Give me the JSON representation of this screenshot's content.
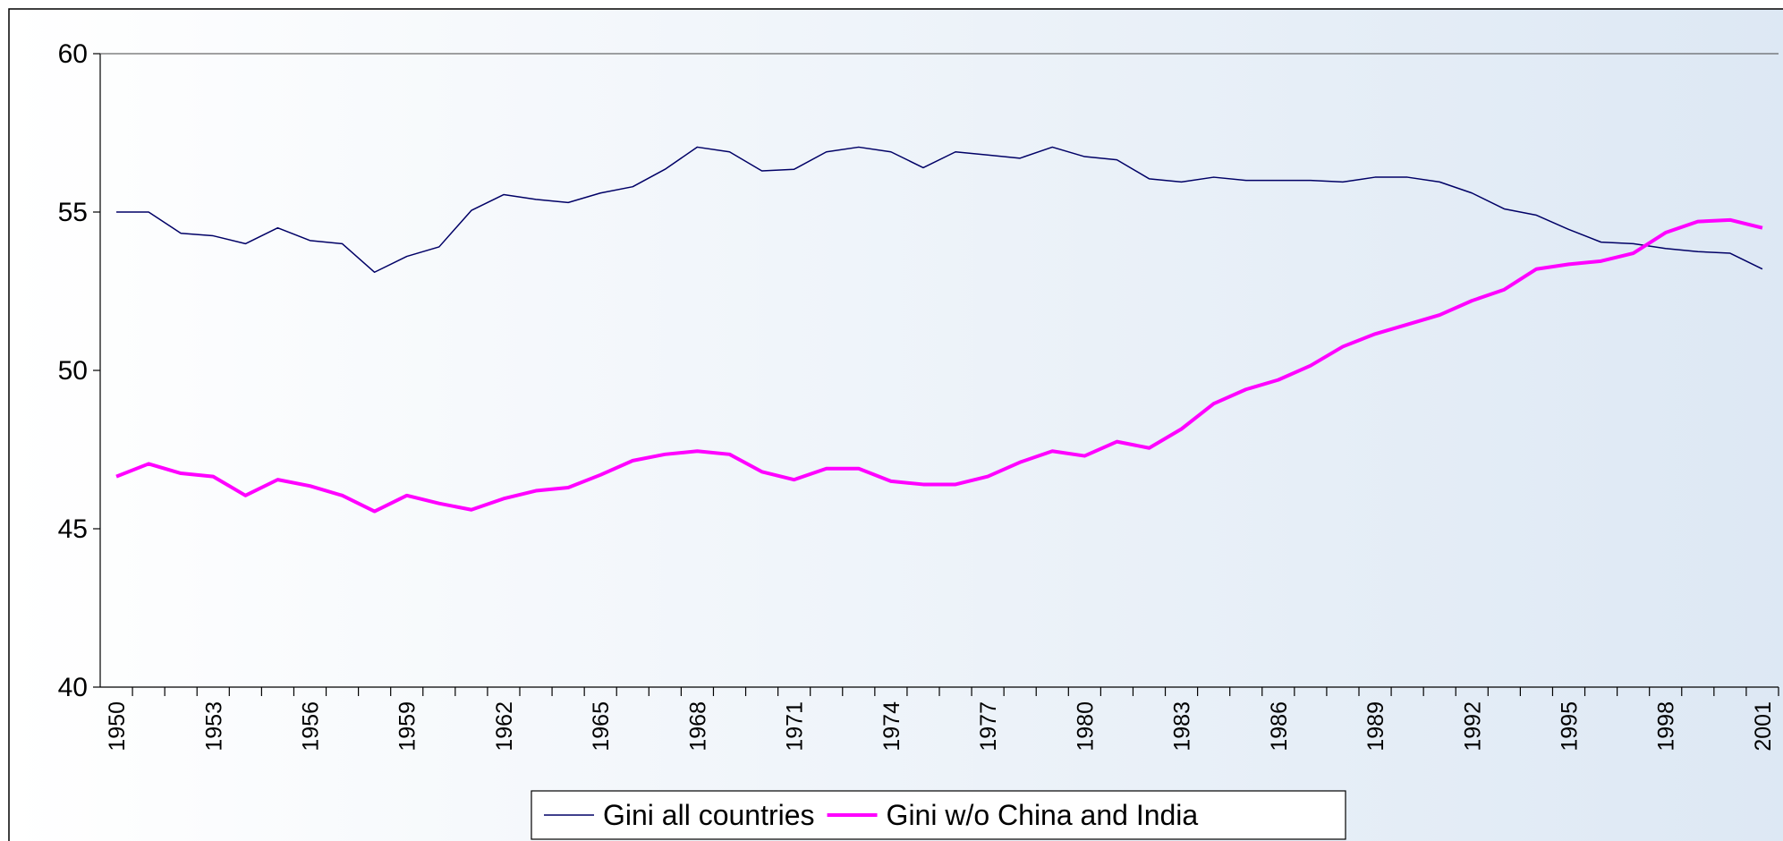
{
  "chart_data": {
    "type": "line",
    "categories": [
      "1950",
      null,
      null,
      "1953",
      null,
      null,
      "1956",
      null,
      null,
      "1959",
      null,
      null,
      "1962",
      null,
      null,
      "1965",
      null,
      null,
      "1968",
      null,
      null,
      "1971",
      null,
      null,
      "1974",
      null,
      null,
      "1977",
      null,
      null,
      "1980",
      null,
      null,
      "1983",
      null,
      null,
      "1986",
      null,
      null,
      "1989",
      null,
      null,
      "1992",
      null,
      null,
      "1995",
      null,
      null,
      "1998",
      null,
      null,
      "2001"
    ],
    "series": [
      {
        "name": "Gini all countries",
        "color": "#000066",
        "width": 1.5,
        "values": [
          55.0,
          55.0,
          54.33,
          54.25,
          54.0,
          54.5,
          54.1,
          54.0,
          53.1,
          53.6,
          53.9,
          55.05,
          55.55,
          55.4,
          55.3,
          55.6,
          55.8,
          56.35,
          57.05,
          56.9,
          56.3,
          56.35,
          56.9,
          57.05,
          56.9,
          56.4,
          56.9,
          56.8,
          56.7,
          57.05,
          56.75,
          56.65,
          56.05,
          55.95,
          56.1,
          56.0,
          56.0,
          56.0,
          55.95,
          56.1,
          56.1,
          55.95,
          55.6,
          55.1,
          54.9,
          54.45,
          54.05,
          54.0,
          53.85,
          53.75,
          53.7,
          53.2
        ]
      },
      {
        "name": "Gini w/o China and India",
        "color": "#ff00ff",
        "width": 4,
        "values": [
          46.65,
          47.05,
          46.75,
          46.65,
          46.05,
          46.55,
          46.35,
          46.05,
          45.55,
          46.05,
          45.8,
          45.6,
          45.95,
          46.2,
          46.3,
          46.7,
          47.15,
          47.35,
          47.45,
          47.35,
          46.8,
          46.55,
          46.9,
          46.9,
          46.5,
          46.4,
          46.4,
          46.65,
          47.1,
          47.45,
          47.3,
          47.75,
          47.55,
          48.15,
          48.95,
          49.4,
          49.7,
          50.15,
          50.75,
          51.15,
          51.45,
          51.75,
          52.2,
          52.55,
          53.2,
          53.35,
          53.45,
          53.7,
          54.35,
          54.7,
          54.75,
          54.5
        ]
      }
    ],
    "ylim": [
      40,
      60
    ],
    "yticks": [
      40,
      45,
      50,
      55,
      60
    ],
    "grid": false,
    "legend": "bottom"
  }
}
